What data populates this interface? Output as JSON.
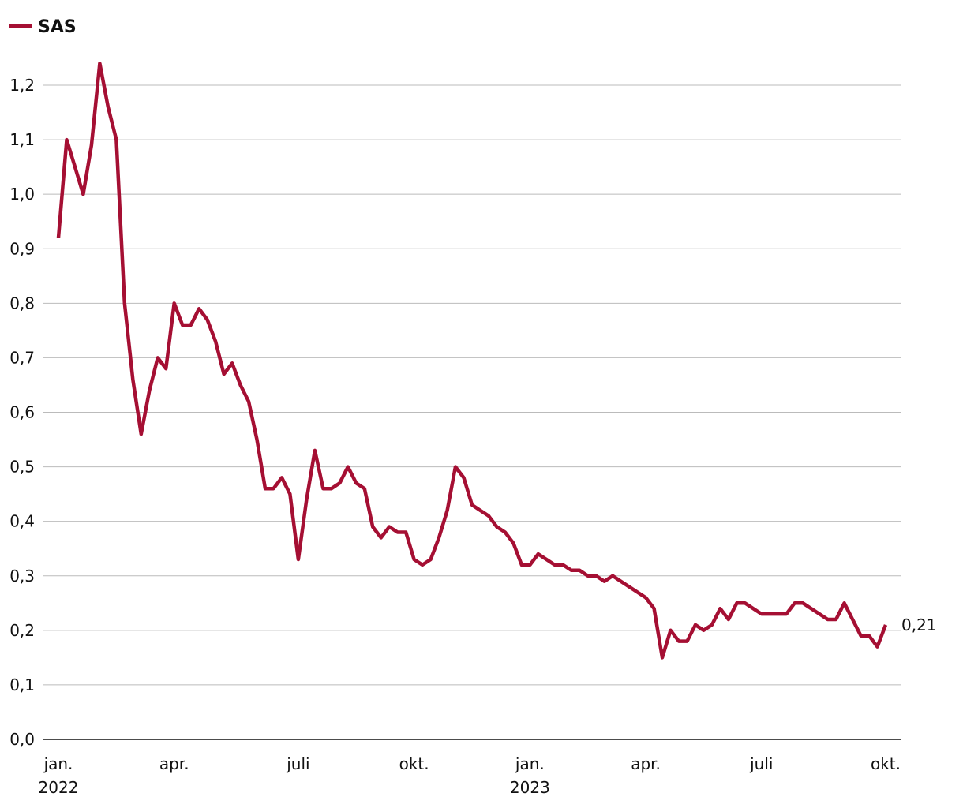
{
  "chart_data": {
    "type": "line",
    "categories": [
      "jan. 2022",
      null,
      null,
      null,
      null,
      null,
      null,
      null,
      null,
      null,
      null,
      null,
      null,
      null,
      "apr.",
      null,
      null,
      null,
      null,
      null,
      null,
      null,
      null,
      null,
      null,
      null,
      null,
      null,
      null,
      "juli",
      null,
      null,
      null,
      null,
      null,
      null,
      null,
      null,
      null,
      null,
      null,
      null,
      null,
      "okt.",
      null,
      null,
      null,
      null,
      null,
      null,
      null,
      null,
      null,
      null,
      null,
      null,
      null,
      "jan. 2023",
      null,
      null,
      null,
      null,
      null,
      null,
      null,
      null,
      null,
      null,
      null,
      null,
      null,
      "apr.",
      null,
      null,
      null,
      null,
      null,
      null,
      null,
      null,
      null,
      null,
      null,
      null,
      null,
      "juli",
      null,
      null,
      null,
      null,
      null,
      null,
      null,
      null,
      null,
      null,
      null,
      null,
      null,
      null,
      "okt."
    ],
    "series": [
      {
        "name": "SAS",
        "color": "#a50f33",
        "values": [
          0.92,
          1.1,
          1.05,
          1.0,
          1.09,
          1.24,
          1.16,
          1.1,
          0.8,
          0.66,
          0.56,
          0.64,
          0.7,
          0.68,
          0.8,
          0.76,
          0.76,
          0.79,
          0.77,
          0.73,
          0.67,
          0.69,
          0.65,
          0.62,
          0.55,
          0.46,
          0.46,
          0.48,
          0.45,
          0.33,
          0.44,
          0.53,
          0.46,
          0.46,
          0.47,
          0.5,
          0.47,
          0.46,
          0.39,
          0.37,
          0.39,
          0.38,
          0.38,
          0.33,
          0.32,
          0.33,
          0.37,
          0.42,
          0.5,
          0.48,
          0.43,
          0.42,
          0.41,
          0.39,
          0.38,
          0.36,
          0.32,
          0.32,
          0.34,
          0.33,
          0.32,
          0.32,
          0.31,
          0.31,
          0.3,
          0.3,
          0.29,
          0.3,
          0.29,
          0.28,
          0.27,
          0.26,
          0.24,
          0.15,
          0.2,
          0.18,
          0.18,
          0.21,
          0.2,
          0.21,
          0.24,
          0.22,
          0.25,
          0.25,
          0.24,
          0.23,
          0.23,
          0.23,
          0.23,
          0.25,
          0.25,
          0.24,
          0.23,
          0.22,
          0.22,
          0.25,
          0.22,
          0.19,
          0.19,
          0.17,
          0.21
        ]
      }
    ],
    "end_label": "0,21",
    "ylim": [
      0,
      1.2
    ],
    "yticks": [
      {
        "value": 0,
        "label": "0,0"
      },
      {
        "value": 0.1,
        "label": "0,1"
      },
      {
        "value": 0.2,
        "label": "0,2"
      },
      {
        "value": 0.3,
        "label": "0,3"
      },
      {
        "value": 0.4,
        "label": "0,4"
      },
      {
        "value": 0.5,
        "label": "0,5"
      },
      {
        "value": 0.6,
        "label": "0,6"
      },
      {
        "value": 0.7,
        "label": "0,7"
      },
      {
        "value": 0.8,
        "label": "0,8"
      },
      {
        "value": 0.9,
        "label": "0,9"
      },
      {
        "value": 1.0,
        "label": "1,0"
      },
      {
        "value": 1.1,
        "label": "1,1"
      },
      {
        "value": 1.2,
        "label": "1,2"
      }
    ],
    "grid": true,
    "legend": "top-left"
  }
}
